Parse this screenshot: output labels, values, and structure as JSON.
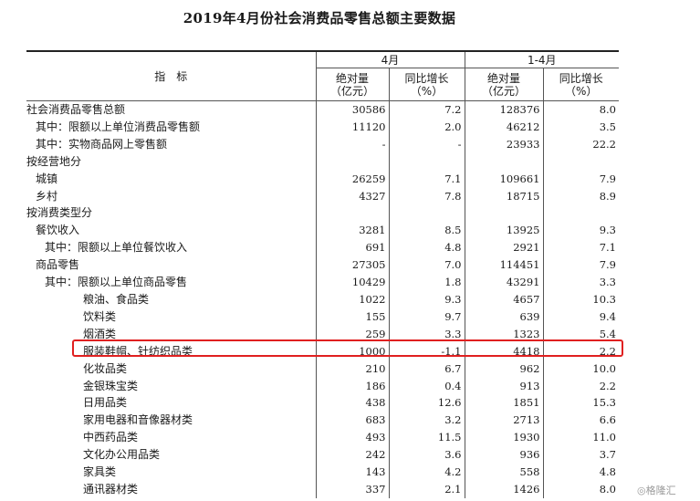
{
  "title": "2019年4月份社会消费品零售总额主要数据",
  "header": {
    "indicator": "指　标",
    "period_april": "4月",
    "period_jan_apr": "1-4月",
    "abs_line1": "绝对量",
    "abs_line2": "（亿元）",
    "yoy_line1": "同比增长",
    "yoy_line2": "（%）"
  },
  "rows": [
    {
      "label": "社会消费品零售总额",
      "indent": 0,
      "apr": "30586",
      "apr_yoy": "7.2",
      "ytd": "128376",
      "ytd_yoy": "8.0"
    },
    {
      "label": "其中：限额以上单位消费品零售额",
      "indent": 1,
      "apr": "11120",
      "apr_yoy": "2.0",
      "ytd": "46212",
      "ytd_yoy": "3.5"
    },
    {
      "label": "其中：实物商品网上零售额",
      "indent": 1,
      "apr": "-",
      "apr_yoy": "-",
      "ytd": "23933",
      "ytd_yoy": "22.2"
    },
    {
      "label": "按经营地分",
      "indent": 0,
      "apr": "",
      "apr_yoy": "",
      "ytd": "",
      "ytd_yoy": ""
    },
    {
      "label": "城镇",
      "indent": 1,
      "apr": "26259",
      "apr_yoy": "7.1",
      "ytd": "109661",
      "ytd_yoy": "7.9"
    },
    {
      "label": "乡村",
      "indent": 1,
      "apr": "4327",
      "apr_yoy": "7.8",
      "ytd": "18715",
      "ytd_yoy": "8.9"
    },
    {
      "label": "按消费类型分",
      "indent": 0,
      "apr": "",
      "apr_yoy": "",
      "ytd": "",
      "ytd_yoy": ""
    },
    {
      "label": "餐饮收入",
      "indent": 1,
      "apr": "3281",
      "apr_yoy": "8.5",
      "ytd": "13925",
      "ytd_yoy": "9.3"
    },
    {
      "label": "其中：限额以上单位餐饮收入",
      "indent": 2,
      "apr": "691",
      "apr_yoy": "4.8",
      "ytd": "2921",
      "ytd_yoy": "7.1"
    },
    {
      "label": "商品零售",
      "indent": 1,
      "apr": "27305",
      "apr_yoy": "7.0",
      "ytd": "114451",
      "ytd_yoy": "7.9"
    },
    {
      "label": "其中：限额以上单位商品零售",
      "indent": 2,
      "apr": "10429",
      "apr_yoy": "1.8",
      "ytd": "43291",
      "ytd_yoy": "3.3"
    },
    {
      "label": "粮油、食品类",
      "indent": 3,
      "apr": "1022",
      "apr_yoy": "9.3",
      "ytd": "4657",
      "ytd_yoy": "10.3"
    },
    {
      "label": "饮料类",
      "indent": 3,
      "apr": "155",
      "apr_yoy": "9.7",
      "ytd": "639",
      "ytd_yoy": "9.4"
    },
    {
      "label": "烟酒类",
      "indent": 3,
      "apr": "259",
      "apr_yoy": "3.3",
      "ytd": "1323",
      "ytd_yoy": "5.4"
    },
    {
      "label": "服装鞋帽、针纺织品类",
      "indent": 3,
      "apr": "1000",
      "apr_yoy": "-1.1",
      "ytd": "4418",
      "ytd_yoy": "2.2"
    },
    {
      "label": "化妆品类",
      "indent": 3,
      "apr": "210",
      "apr_yoy": "6.7",
      "ytd": "962",
      "ytd_yoy": "10.0"
    },
    {
      "label": "金银珠宝类",
      "indent": 3,
      "apr": "186",
      "apr_yoy": "0.4",
      "ytd": "913",
      "ytd_yoy": "2.2"
    },
    {
      "label": "日用品类",
      "indent": 3,
      "apr": "438",
      "apr_yoy": "12.6",
      "ytd": "1851",
      "ytd_yoy": "15.3"
    },
    {
      "label": "家用电器和音像器材类",
      "indent": 3,
      "apr": "683",
      "apr_yoy": "3.2",
      "ytd": "2713",
      "ytd_yoy": "6.6"
    },
    {
      "label": "中西药品类",
      "indent": 3,
      "apr": "493",
      "apr_yoy": "11.5",
      "ytd": "1930",
      "ytd_yoy": "11.0"
    },
    {
      "label": "文化办公用品类",
      "indent": 3,
      "apr": "242",
      "apr_yoy": "3.6",
      "ytd": "936",
      "ytd_yoy": "3.7"
    },
    {
      "label": "家具类",
      "indent": 3,
      "apr": "143",
      "apr_yoy": "4.2",
      "ytd": "558",
      "ytd_yoy": "4.8"
    },
    {
      "label": "通讯器材类",
      "indent": 3,
      "apr": "337",
      "apr_yoy": "2.1",
      "ytd": "1426",
      "ytd_yoy": "8.0"
    }
  ],
  "watermark": "◎格隆汇",
  "colors": {
    "highlight": "#e02020"
  }
}
